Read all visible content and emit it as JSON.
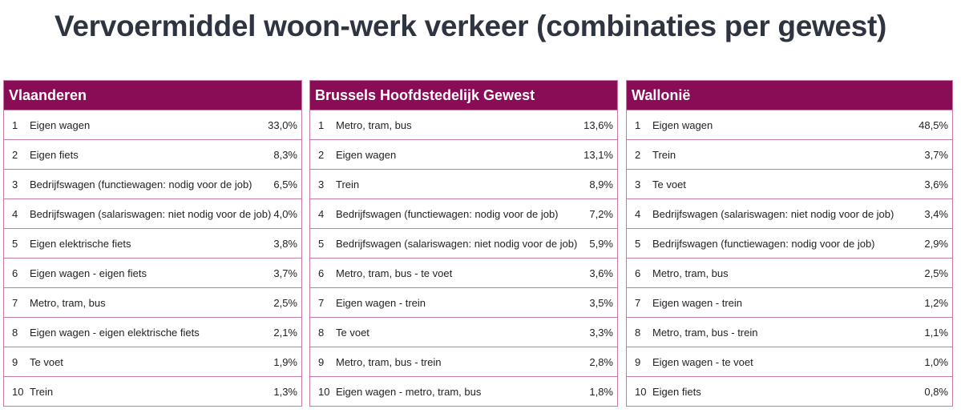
{
  "title": "Vervoermiddel woon-werk verkeer (combinaties per gewest)",
  "colors": {
    "header": "#8a0c56",
    "border": "#c47aa3"
  },
  "tables": [
    {
      "name": "Vlaanderen",
      "rows": [
        {
          "rank": "1",
          "label": "Eigen wagen",
          "value": "33,0%"
        },
        {
          "rank": "2",
          "label": "Eigen fiets",
          "value": "8,3%"
        },
        {
          "rank": "3",
          "label": "Bedrijfswagen (functiewagen: nodig voor de job)",
          "value": "6,5%"
        },
        {
          "rank": "4",
          "label": "Bedrijfswagen (salariswagen: niet nodig voor de job)",
          "value": "4,0%"
        },
        {
          "rank": "5",
          "label": "Eigen elektrische fiets",
          "value": "3,8%"
        },
        {
          "rank": "6",
          "label": "Eigen wagen - eigen fiets",
          "value": "3,7%"
        },
        {
          "rank": "7",
          "label": "Metro, tram, bus",
          "value": "2,5%"
        },
        {
          "rank": "8",
          "label": "Eigen wagen - eigen elektrische fiets",
          "value": "2,1%"
        },
        {
          "rank": "9",
          "label": "Te voet",
          "value": "1,9%"
        },
        {
          "rank": "10",
          "label": "Trein",
          "value": "1,3%"
        }
      ]
    },
    {
      "name": "Brussels Hoofdstedelijk Gewest",
      "rows": [
        {
          "rank": "1",
          "label": "Metro, tram, bus",
          "value": "13,6%"
        },
        {
          "rank": "2",
          "label": "Eigen wagen",
          "value": "13,1%"
        },
        {
          "rank": "3",
          "label": "Trein",
          "value": "8,9%"
        },
        {
          "rank": "4",
          "label": "Bedrijfswagen (functiewagen: nodig voor de job)",
          "value": "7,2%"
        },
        {
          "rank": "5",
          "label": "Bedrijfswagen (salariswagen: niet nodig voor de job)",
          "value": "5,9%"
        },
        {
          "rank": "6",
          "label": "Metro, tram, bus - te voet",
          "value": "3,6%"
        },
        {
          "rank": "7",
          "label": "Eigen wagen - trein",
          "value": "3,5%"
        },
        {
          "rank": "8",
          "label": "Te voet",
          "value": "3,3%"
        },
        {
          "rank": "9",
          "label": "Metro, tram, bus - trein",
          "value": "2,8%"
        },
        {
          "rank": "10",
          "label": "Eigen wagen - metro, tram, bus",
          "value": "1,8%"
        }
      ]
    },
    {
      "name": "Wallonië",
      "rows": [
        {
          "rank": "1",
          "label": "Eigen wagen",
          "value": "48,5%"
        },
        {
          "rank": "2",
          "label": "Trein",
          "value": "3,7%"
        },
        {
          "rank": "3",
          "label": "Te voet",
          "value": "3,6%"
        },
        {
          "rank": "4",
          "label": "Bedrijfswagen (salariswagen: niet nodig voor de job)",
          "value": "3,4%"
        },
        {
          "rank": "5",
          "label": "Bedrijfswagen (functiewagen: nodig voor de job)",
          "value": "2,9%"
        },
        {
          "rank": "6",
          "label": "Metro, tram, bus",
          "value": "2,5%"
        },
        {
          "rank": "7",
          "label": "Eigen wagen - trein",
          "value": "1,2%"
        },
        {
          "rank": "8",
          "label": "Metro, tram, bus - trein",
          "value": "1,1%"
        },
        {
          "rank": "9",
          "label": "Eigen wagen - te voet",
          "value": "1,0%"
        },
        {
          "rank": "10",
          "label": "Eigen fiets",
          "value": "0,8%"
        }
      ]
    }
  ]
}
